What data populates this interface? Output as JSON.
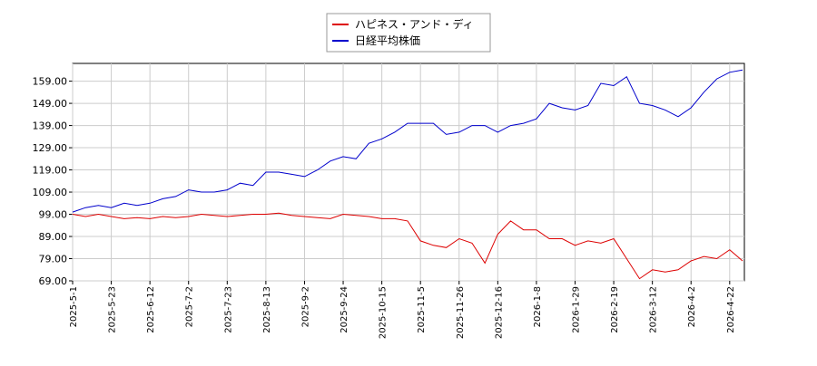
{
  "chart_data": {
    "type": "line",
    "categories": [
      "2025-5-1",
      null,
      null,
      "2025-5-23",
      null,
      null,
      "2025-6-12",
      null,
      null,
      "2025-7-2",
      null,
      null,
      "2025-7-23",
      null,
      null,
      "2025-8-13",
      null,
      null,
      "2025-9-2",
      null,
      null,
      "2025-9-24",
      null,
      null,
      "2025-10-15",
      null,
      null,
      "2025-11-5",
      null,
      null,
      "2025-11-26",
      null,
      null,
      "2025-12-16",
      null,
      null,
      "2026-1-8",
      null,
      null,
      "2026-1-29",
      null,
      null,
      "2026-2-19",
      null,
      null,
      "2026-3-12",
      null,
      null,
      "2026-4-2",
      null,
      null,
      "2026-4-22",
      null
    ],
    "series": [
      {
        "name": "ハピネス・アンド・ディ",
        "color": "#dd0000",
        "values": [
          99,
          98,
          99,
          98,
          97,
          97.5,
          97,
          98,
          97.5,
          98,
          99,
          98.5,
          98,
          98.5,
          99,
          99,
          99.5,
          98.5,
          98,
          97.5,
          97,
          99,
          98.5,
          98,
          97,
          97,
          96,
          87,
          85,
          84,
          88,
          86,
          77,
          90,
          96,
          92,
          92,
          88,
          88,
          85,
          87,
          86,
          88,
          79,
          70,
          74,
          73,
          74,
          78,
          80,
          79,
          83,
          78
        ]
      },
      {
        "name": "日経平均株価",
        "color": "#0000cc",
        "values": [
          100,
          102,
          103,
          102,
          104,
          103,
          104,
          106,
          107,
          110,
          109,
          109,
          110,
          113,
          112,
          118,
          118,
          117,
          116,
          119,
          123,
          125,
          124,
          131,
          133,
          136,
          140,
          140,
          140,
          135,
          136,
          139,
          139,
          136,
          139,
          140,
          142,
          149,
          147,
          146,
          148,
          158,
          157,
          161,
          149,
          148,
          146,
          143,
          147,
          154,
          160,
          163,
          164
        ]
      }
    ],
    "ylim": [
      69,
      167
    ],
    "yticks": [
      {
        "value": 69,
        "label": "69.00"
      },
      {
        "value": 79,
        "label": "79.00"
      },
      {
        "value": 89,
        "label": "89.00"
      },
      {
        "value": 99,
        "label": "99.00"
      },
      {
        "value": 109,
        "label": "109.00"
      },
      {
        "value": 119,
        "label": "119.00"
      },
      {
        "value": 129,
        "label": "129.00"
      },
      {
        "value": 139,
        "label": "139.00"
      },
      {
        "value": 149,
        "label": "149.00"
      },
      {
        "value": 159,
        "label": "159.00"
      }
    ],
    "grid": true
  }
}
